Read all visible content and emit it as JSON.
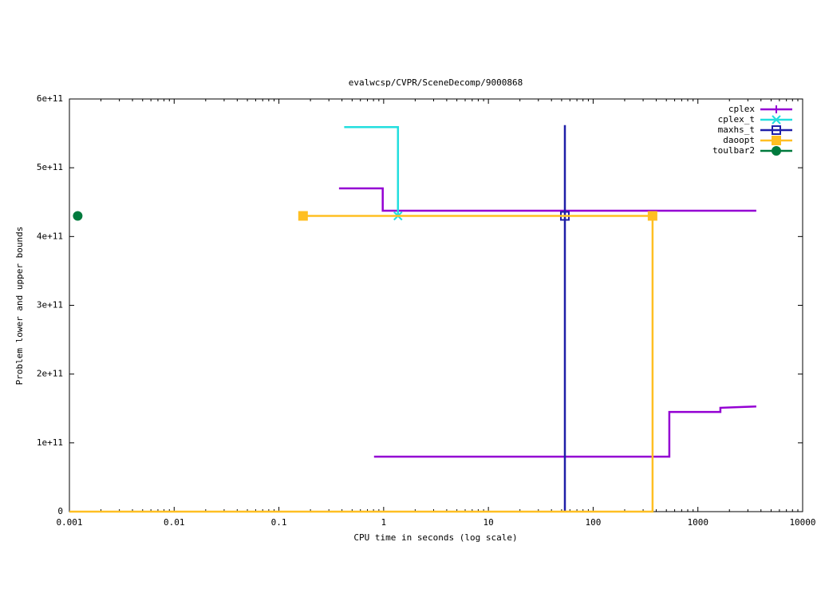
{
  "chart_data": {
    "type": "line",
    "title": "evalwcsp/CVPR/SceneDecomp/9000868",
    "x_label": "CPU time in seconds (log scale)",
    "y_label": "Problem lower and upper bounds",
    "xscale": "log",
    "xlim": [
      0.001,
      10000
    ],
    "xticks": [
      0.001,
      0.01,
      0.1,
      1,
      10,
      100,
      1000,
      10000
    ],
    "ylim": [
      0,
      600000000000
    ],
    "yticks": [
      0,
      {
        "value": 100000000000,
        "label": "1e+11"
      },
      {
        "value": 200000000000,
        "label": "2e+11"
      },
      {
        "value": 300000000000,
        "label": "3e+11"
      },
      {
        "value": 400000000000,
        "label": "4e+11"
      },
      {
        "value": 500000000000,
        "label": "5e+11"
      },
      {
        "value": 600000000000,
        "label": "6e+11"
      }
    ],
    "grid": false,
    "legend": "top-right",
    "series": [
      {
        "name": "cplex",
        "color": "#9400d3",
        "marker": "plus",
        "x": [
          0.375,
          0.98,
          0.98,
          3610,
          null,
          0.81,
          534,
          534,
          1640,
          1640,
          3610
        ],
        "values": [
          470000000000,
          470000000000,
          437500000000,
          437500000000,
          null,
          80000000000,
          80000000000,
          145000000000,
          145000000000,
          151000000000,
          153000000000
        ]
      },
      {
        "name": "cplex_t",
        "color": "#22dede",
        "marker": "x",
        "x": [
          0.42,
          1.37,
          1.37
        ],
        "values": [
          559000000000,
          559000000000,
          430000000000
        ],
        "marker_x": [
          1.37
        ],
        "marker_values": [
          430000000000
        ]
      },
      {
        "name": "maxhs_t",
        "color": "#1f1fa8",
        "marker": "square-open",
        "x": [
          53.7,
          53.7
        ],
        "values": [
          0,
          562000000000
        ],
        "marker_x": [
          53.7
        ],
        "marker_values": [
          430000000000
        ]
      },
      {
        "name": "daoopt",
        "color": "#ffbf22",
        "marker": "square",
        "x": [
          0.17,
          369,
          369,
          0.001
        ],
        "values": [
          430000000000,
          430000000000,
          0,
          0
        ],
        "marker_x": [
          0.17,
          369
        ],
        "marker_values": [
          430000000000,
          430000000000
        ]
      },
      {
        "name": "toulbar2",
        "color": "#007a3d",
        "marker": "circle",
        "x": [
          0.0012
        ],
        "values": [
          430000000000
        ]
      }
    ]
  }
}
